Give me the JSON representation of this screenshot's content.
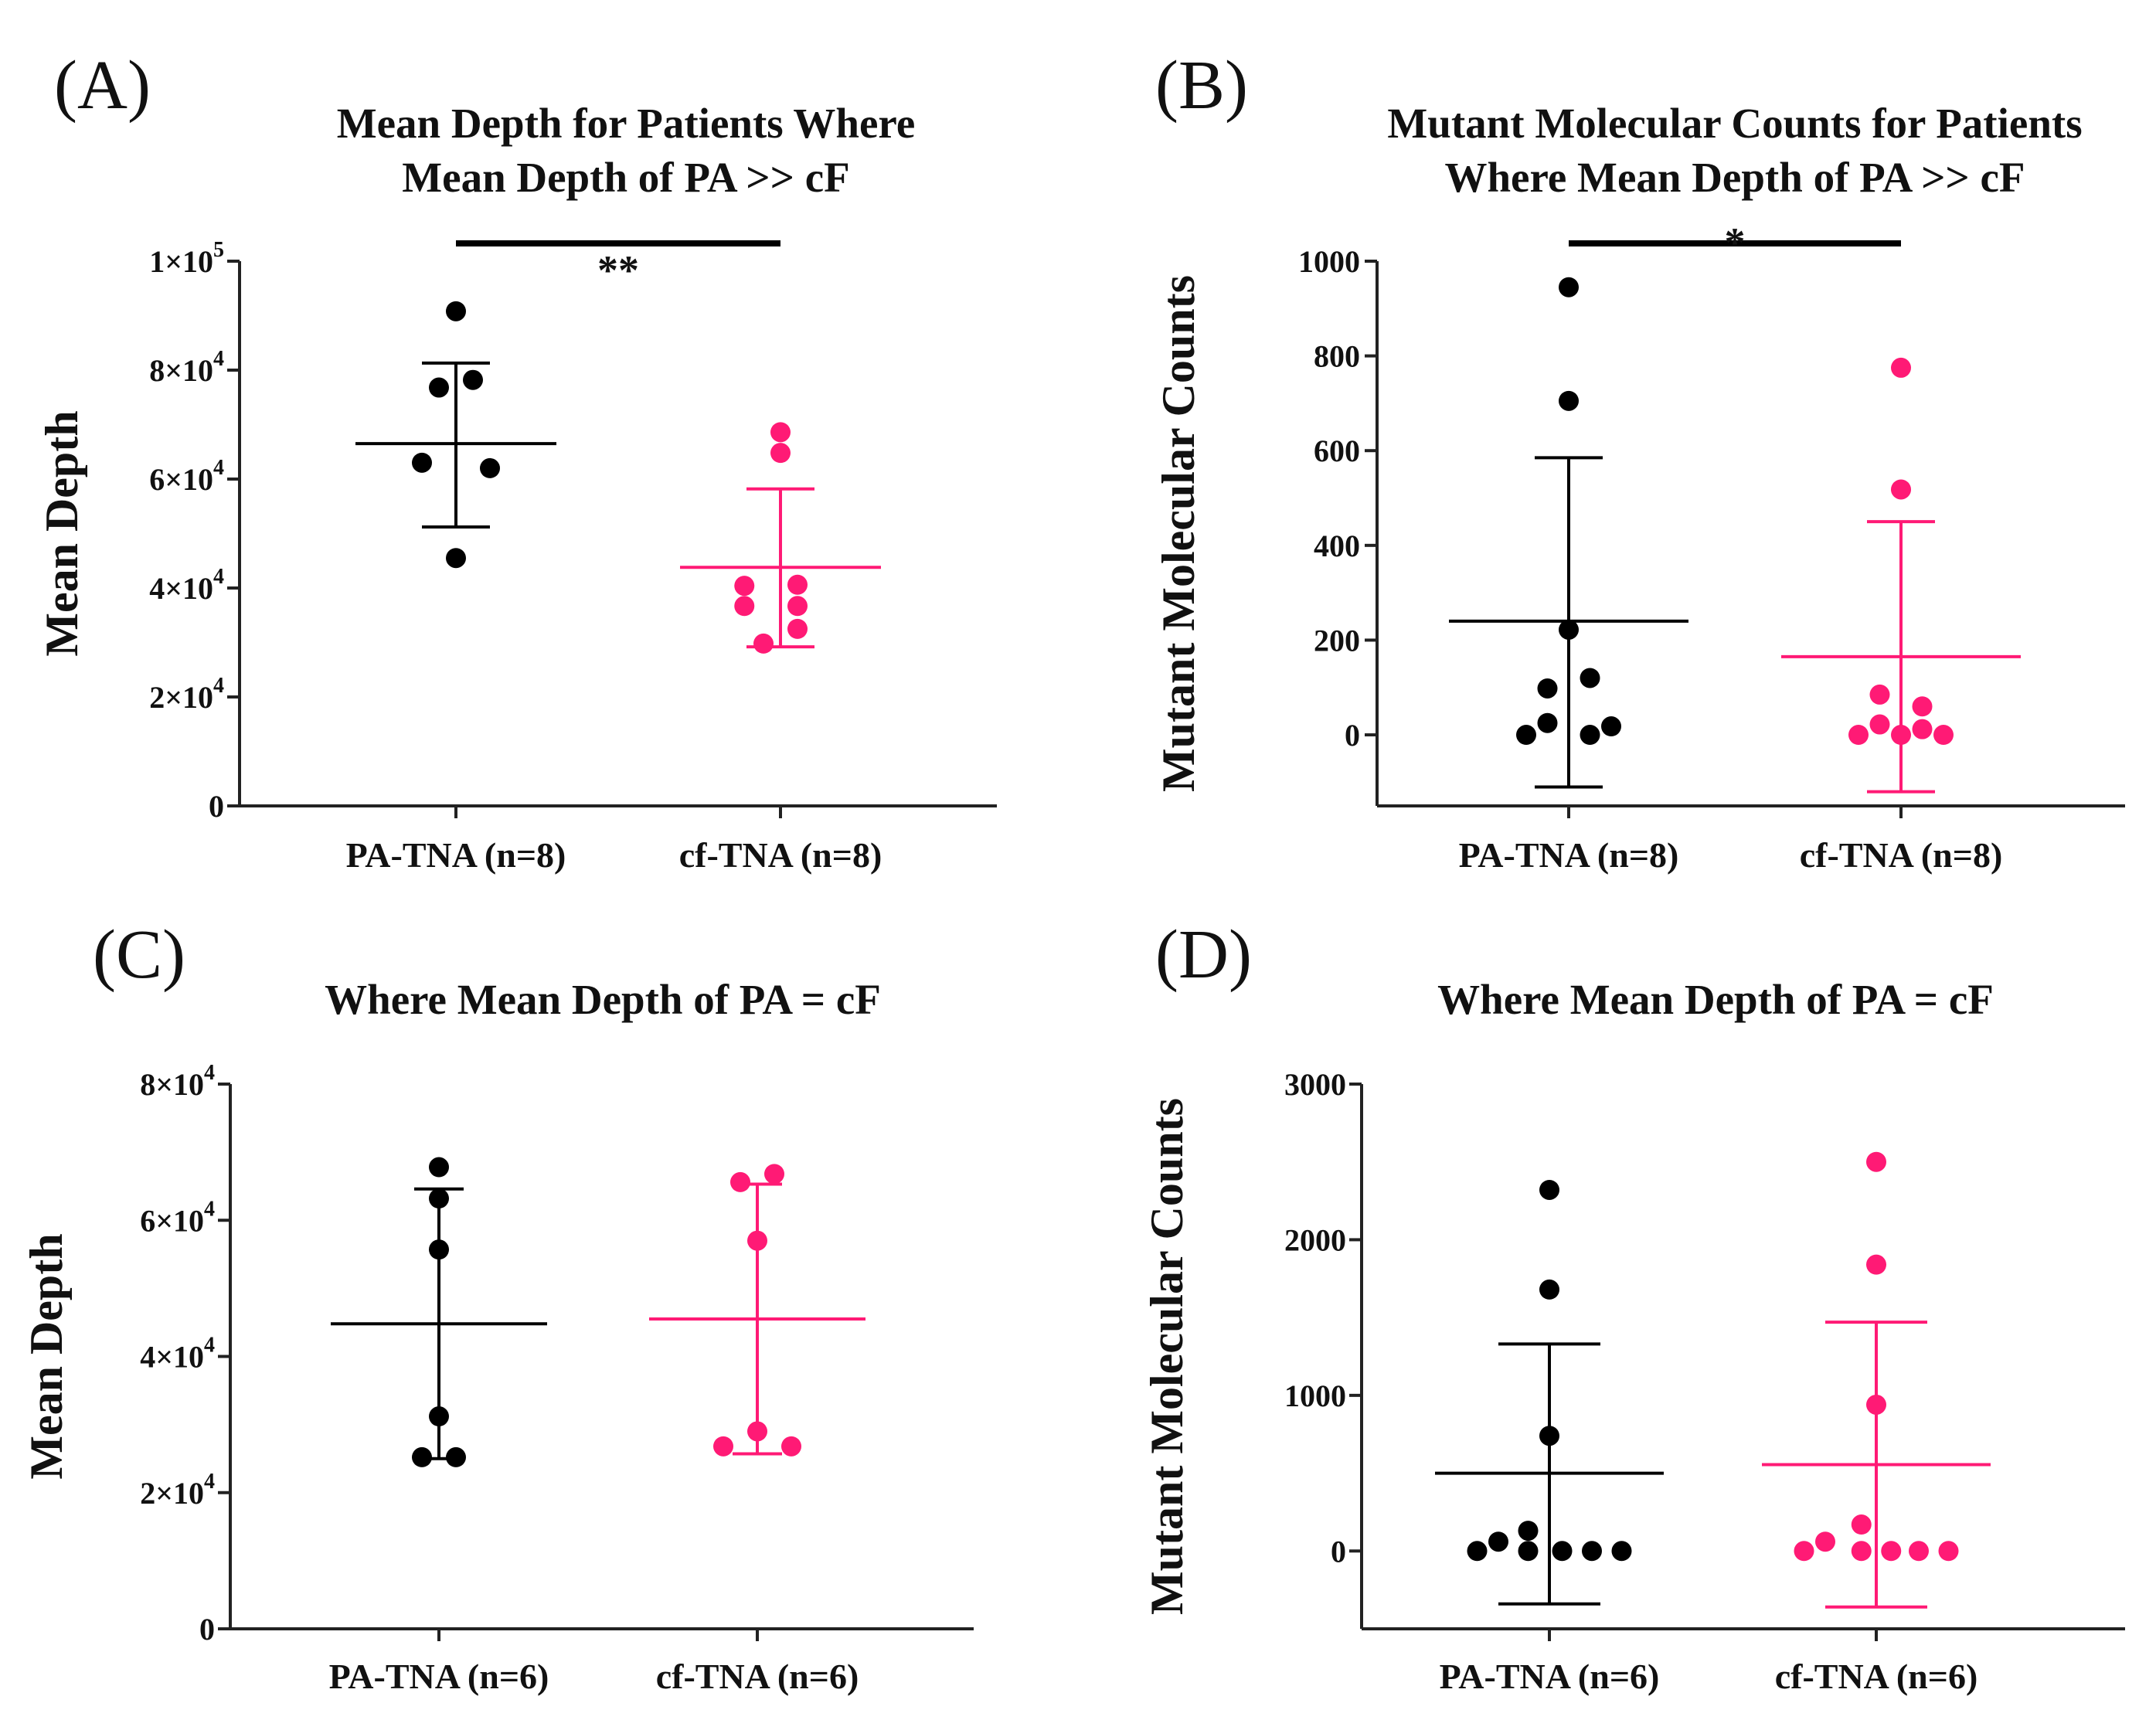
{
  "colors": {
    "pa": "#000000",
    "cf": "#ff1a75"
  },
  "chart_data": [
    {
      "type": "scatter",
      "panel": "(A)",
      "title": [
        "Mean Depth for  Patients Where",
        "Mean Depth of PA >> cF"
      ],
      "xlabel": "",
      "ylabel": "Mean Depth",
      "ylim": [
        0,
        100000
      ],
      "yticks": [
        0,
        20000,
        40000,
        60000,
        80000,
        100000
      ],
      "ytick_labels": [
        {
          "m": "0",
          "e": ""
        },
        {
          "m": "2×10",
          "e": "4"
        },
        {
          "m": "4×10",
          "e": "4"
        },
        {
          "m": "6×10",
          "e": "4"
        },
        {
          "m": "8×10",
          "e": "4"
        },
        {
          "m": "1×10",
          "e": "5"
        }
      ],
      "categories": [
        "PA-TNA (n=8)",
        "cf-TNA (n=8)"
      ],
      "series": [
        {
          "name": "PA-TNA (n=8)",
          "color_key": "pa",
          "mean": 66500,
          "sd_low": 51200,
          "sd_high": 81300,
          "points": [
            {
              "o": 0,
              "v": 90800
            },
            {
              "o": -0.4,
              "v": 76800
            },
            {
              "o": 0.4,
              "v": 78200
            },
            {
              "o": -0.8,
              "v": 63000
            },
            {
              "o": 0.8,
              "v": 62000
            },
            {
              "o": 0,
              "v": 45500
            }
          ]
        },
        {
          "name": "cf-TNA (n=8)",
          "color_key": "cf",
          "mean": 43800,
          "sd_low": 29200,
          "sd_high": 58200,
          "points": [
            {
              "o": 0,
              "v": 68600
            },
            {
              "o": 0,
              "v": 64800
            },
            {
              "o": -0.85,
              "v": 40400
            },
            {
              "o": 0.4,
              "v": 40600
            },
            {
              "o": -0.85,
              "v": 36700
            },
            {
              "o": 0.4,
              "v": 36700
            },
            {
              "o": -0.4,
              "v": 29800
            },
            {
              "o": 0.4,
              "v": 32500
            }
          ]
        }
      ],
      "significance": "**"
    },
    {
      "type": "scatter",
      "panel": "(B)",
      "title": [
        "Mutant Molecular Counts for Patients",
        "Where Mean Depth of PA >> cF"
      ],
      "xlabel": "",
      "ylabel": "Mutant Molecular Counts",
      "ylim": [
        -150,
        1000
      ],
      "yticks": [
        0,
        200,
        400,
        600,
        800,
        1000
      ],
      "ytick_labels": [
        {
          "m": "0",
          "e": ""
        },
        {
          "m": "200",
          "e": ""
        },
        {
          "m": "400",
          "e": ""
        },
        {
          "m": "600",
          "e": ""
        },
        {
          "m": "800",
          "e": ""
        },
        {
          "m": "1000",
          "e": ""
        }
      ],
      "categories": [
        "PA-TNA (n=8)",
        "cf-TNA (n=8)"
      ],
      "series": [
        {
          "name": "PA-TNA (n=8)",
          "color_key": "pa",
          "mean": 240,
          "sd_low": -110,
          "sd_high": 585,
          "points": [
            {
              "o": 0,
              "v": 945
            },
            {
              "o": 0,
              "v": 705
            },
            {
              "o": 0,
              "v": 222
            },
            {
              "o": 0.5,
              "v": 120
            },
            {
              "o": -0.5,
              "v": 98
            },
            {
              "o": -0.5,
              "v": 25
            },
            {
              "o": 1.0,
              "v": 18
            },
            {
              "o": -1.0,
              "v": 0
            },
            {
              "o": 0.5,
              "v": 0
            }
          ]
        },
        {
          "name": "cf-TNA (n=8)",
          "color_key": "cf",
          "mean": 165,
          "sd_low": -120,
          "sd_high": 450,
          "points": [
            {
              "o": 0,
              "v": 775
            },
            {
              "o": 0,
              "v": 518
            },
            {
              "o": -0.5,
              "v": 85
            },
            {
              "o": 0.5,
              "v": 60
            },
            {
              "o": -0.5,
              "v": 22
            },
            {
              "o": 0.5,
              "v": 12
            },
            {
              "o": -1.0,
              "v": 0
            },
            {
              "o": 0,
              "v": 0
            },
            {
              "o": 1.0,
              "v": 0
            }
          ]
        }
      ],
      "significance": "*"
    },
    {
      "type": "scatter",
      "panel": "(C)",
      "title": [
        "Where Mean Depth of PA = cF"
      ],
      "xlabel": "",
      "ylabel": "Mean Depth",
      "ylim": [
        0,
        80000
      ],
      "yticks": [
        0,
        20000,
        40000,
        60000,
        80000
      ],
      "ytick_labels": [
        {
          "m": "0",
          "e": ""
        },
        {
          "m": "2×10",
          "e": "4"
        },
        {
          "m": "4×10",
          "e": "4"
        },
        {
          "m": "6×10",
          "e": "4"
        },
        {
          "m": "8×10",
          "e": "4"
        }
      ],
      "categories": [
        "PA-TNA (n=6)",
        "cf-TNA (n=6)"
      ],
      "series": [
        {
          "name": "PA-TNA (n=6)",
          "color_key": "pa",
          "mean": 44800,
          "sd_low": 25000,
          "sd_high": 64600,
          "points": [
            {
              "o": 0,
              "v": 67800
            },
            {
              "o": 0,
              "v": 63200
            },
            {
              "o": 0,
              "v": 55700
            },
            {
              "o": 0,
              "v": 31200
            },
            {
              "o": -0.4,
              "v": 25200
            },
            {
              "o": 0.4,
              "v": 25200
            }
          ]
        },
        {
          "name": "cf-TNA (n=6)",
          "color_key": "cf",
          "mean": 45500,
          "sd_low": 25700,
          "sd_high": 65300,
          "points": [
            {
              "o": -0.4,
              "v": 65600
            },
            {
              "o": 0.4,
              "v": 66800
            },
            {
              "o": 0,
              "v": 57000
            },
            {
              "o": 0,
              "v": 29000
            },
            {
              "o": -0.8,
              "v": 26800
            },
            {
              "o": 0.8,
              "v": 26800
            }
          ]
        }
      ],
      "significance": ""
    },
    {
      "type": "scatter",
      "panel": "(D)",
      "title": [
        "Where Mean Depth of PA = cF"
      ],
      "xlabel": "",
      "ylabel": "Mutant Molecular Counts",
      "ylim": [
        -500,
        3000
      ],
      "yticks": [
        0,
        1000,
        2000,
        3000
      ],
      "ytick_labels": [
        {
          "m": "0",
          "e": ""
        },
        {
          "m": "1000",
          "e": ""
        },
        {
          "m": "2000",
          "e": ""
        },
        {
          "m": "3000",
          "e": ""
        }
      ],
      "categories": [
        "PA-TNA (n=6)",
        "cf-TNA (n=6)"
      ],
      "series": [
        {
          "name": "PA-TNA (n=6)",
          "color_key": "pa",
          "mean": 500,
          "sd_low": -340,
          "sd_high": 1330,
          "points": [
            {
              "o": 0,
              "v": 2320
            },
            {
              "o": 0,
              "v": 1680
            },
            {
              "o": 0,
              "v": 740
            },
            {
              "o": -0.5,
              "v": 130
            },
            {
              "o": -1.2,
              "v": 60
            },
            {
              "o": -1.7,
              "v": 0
            },
            {
              "o": -0.5,
              "v": 0
            },
            {
              "o": 0.3,
              "v": 0
            },
            {
              "o": 1.0,
              "v": 0
            },
            {
              "o": 1.7,
              "v": 0
            }
          ]
        },
        {
          "name": "cf-TNA (n=6)",
          "color_key": "cf",
          "mean": 555,
          "sd_low": -360,
          "sd_high": 1470,
          "points": [
            {
              "o": 0,
              "v": 2500
            },
            {
              "o": 0,
              "v": 1840
            },
            {
              "o": 0,
              "v": 940
            },
            {
              "o": -0.35,
              "v": 170
            },
            {
              "o": -1.2,
              "v": 60
            },
            {
              "o": -1.7,
              "v": 0
            },
            {
              "o": -0.35,
              "v": 0
            },
            {
              "o": 0.35,
              "v": 0
            },
            {
              "o": 1.0,
              "v": 0
            },
            {
              "o": 1.7,
              "v": 0
            }
          ]
        }
      ],
      "significance": ""
    }
  ]
}
